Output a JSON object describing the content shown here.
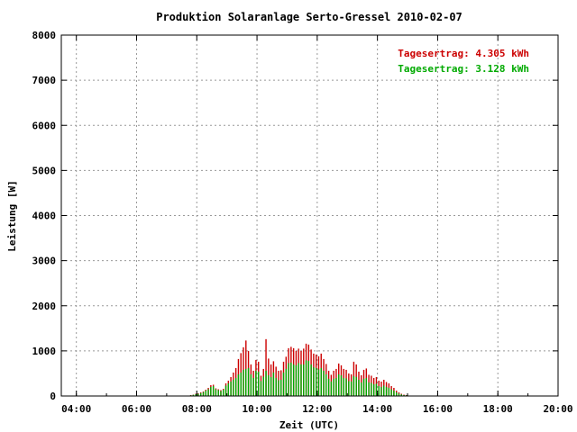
{
  "chart_data": {
    "type": "bar",
    "title": "Produktion Solaranlage Serto-Gressel 2010-02-07",
    "xlabel": "Zeit (UTC)",
    "ylabel": "Leistung [W]",
    "xlim": [
      3.5,
      20.0
    ],
    "ylim": [
      0,
      8000
    ],
    "xticks": [
      "04:00",
      "06:00",
      "08:00",
      "10:00",
      "12:00",
      "14:00",
      "16:00",
      "18:00",
      "20:00"
    ],
    "yticks": [
      "0",
      "1000",
      "2000",
      "3000",
      "4000",
      "5000",
      "6000",
      "7000",
      "8000"
    ],
    "grid": true,
    "legend_position": "top-right",
    "legend": [
      {
        "text": "Tagesertrag: 4.305 kWh",
        "color": "#cc0000"
      },
      {
        "text": "Tagesertrag: 3.128 kWh",
        "color": "#00aa00"
      }
    ],
    "x_start_hour": 7.8,
    "x_step_hour": 0.0833,
    "series": [
      {
        "color": "#cc0000",
        "values": [
          20,
          30,
          50,
          60,
          80,
          100,
          140,
          180,
          240,
          250,
          170,
          150,
          130,
          160,
          280,
          340,
          420,
          520,
          620,
          820,
          950,
          1080,
          1230,
          1000,
          700,
          560,
          800,
          760,
          450,
          600,
          1260,
          830,
          700,
          770,
          650,
          560,
          570,
          760,
          870,
          1060,
          1090,
          1060,
          1000,
          1050,
          1000,
          1050,
          1160,
          1140,
          1030,
          940,
          920,
          880,
          940,
          820,
          710,
          560,
          470,
          560,
          600,
          720,
          680,
          600,
          580,
          500,
          480,
          760,
          700,
          540,
          460,
          580,
          610,
          470,
          450,
          400,
          420,
          340,
          320,
          360,
          310,
          280,
          220,
          180,
          120,
          80,
          50,
          30,
          20
        ]
      },
      {
        "color": "#00aa00",
        "values": [
          15,
          25,
          40,
          50,
          65,
          85,
          120,
          150,
          200,
          220,
          150,
          130,
          110,
          140,
          230,
          280,
          320,
          360,
          400,
          480,
          520,
          580,
          600,
          620,
          480,
          400,
          560,
          540,
          330,
          430,
          560,
          460,
          420,
          520,
          400,
          350,
          360,
          520,
          600,
          730,
          740,
          700,
          680,
          730,
          700,
          700,
          790,
          780,
          700,
          640,
          620,
          590,
          620,
          560,
          480,
          380,
          320,
          380,
          400,
          480,
          460,
          400,
          390,
          330,
          320,
          440,
          420,
          360,
          300,
          380,
          400,
          300,
          290,
          260,
          270,
          220,
          200,
          230,
          200,
          180,
          150,
          120,
          80,
          55,
          35,
          20,
          15
        ]
      }
    ]
  }
}
